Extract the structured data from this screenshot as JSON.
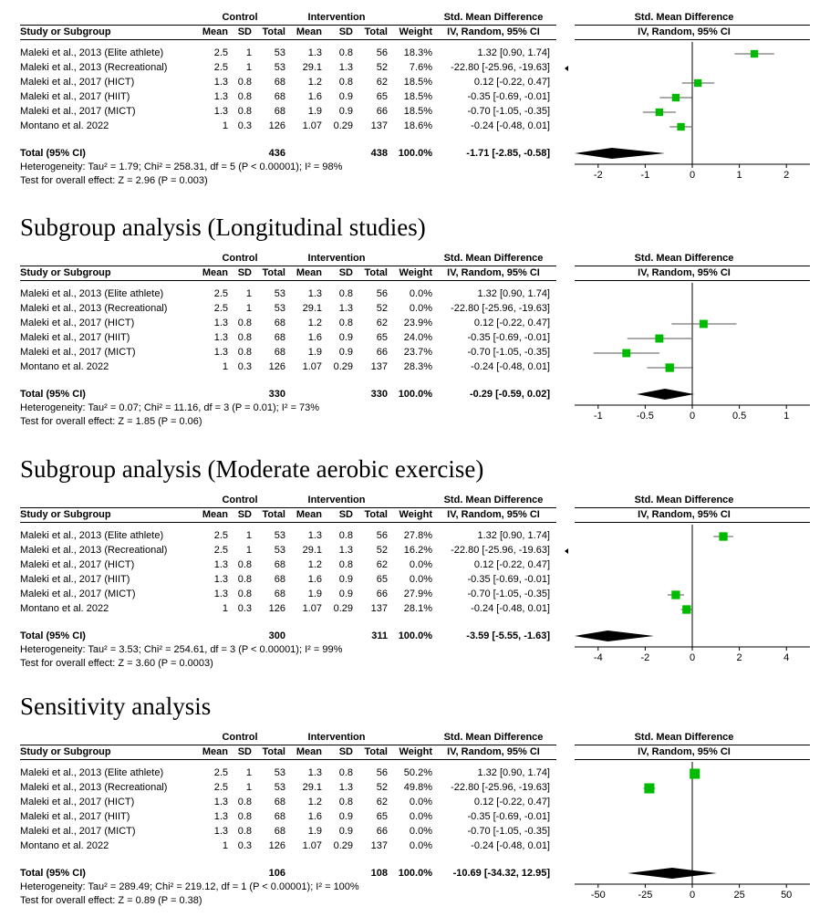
{
  "headers": {
    "control": "Control",
    "intervention": "Intervention",
    "smd": "Std. Mean Difference",
    "smd2": "Std. Mean Difference",
    "study": "Study or Subgroup",
    "mean": "Mean",
    "sd": "SD",
    "total": "Total",
    "weight": "Weight",
    "method": "IV, Random, 95% CI",
    "method2": "IV, Random, 95% CI"
  },
  "panels": [
    {
      "title": "",
      "total_label": "Total (95% CI)",
      "total_control": "436",
      "total_intervention": "438",
      "total_weight": "100.0%",
      "total_ci": "-1.71 [-2.85, -0.58]",
      "heterogeneity": "Heterogeneity: Tau² = 1.79; Chi² = 258.31, df = 5 (P < 0.00001); I² = 98%",
      "overall": "Test for overall effect: Z = 2.96 (P = 0.003)",
      "rows": [
        {
          "study": "Maleki et al., 2013 (Elite athlete)",
          "cm": "2.5",
          "csd": "1",
          "cn": "53",
          "im": "1.3",
          "isd": "0.8",
          "in": "56",
          "w": "18.3%",
          "ci": "1.32 [0.90, 1.74]"
        },
        {
          "study": "Maleki et al., 2013 (Recreational)",
          "cm": "2.5",
          "csd": "1",
          "cn": "53",
          "im": "29.1",
          "isd": "1.3",
          "in": "52",
          "w": "7.6%",
          "ci": "-22.80 [-25.96, -19.63]"
        },
        {
          "study": "Maleki et al., 2017 (HICT)",
          "cm": "1.3",
          "csd": "0.8",
          "cn": "68",
          "im": "1.2",
          "isd": "0.8",
          "in": "62",
          "w": "18.5%",
          "ci": "0.12 [-0.22, 0.47]"
        },
        {
          "study": "Maleki et al., 2017 (HIIT)",
          "cm": "1.3",
          "csd": "0.8",
          "cn": "68",
          "im": "1.6",
          "isd": "0.9",
          "in": "65",
          "w": "18.5%",
          "ci": "-0.35 [-0.69, -0.01]"
        },
        {
          "study": "Maleki et al., 2017 (MICT)",
          "cm": "1.3",
          "csd": "0.8",
          "cn": "68",
          "im": "1.9",
          "isd": "0.9",
          "in": "66",
          "w": "18.5%",
          "ci": "-0.70 [-1.05, -0.35]"
        },
        {
          "study": "Montano et al. 2022",
          "cm": "1",
          "csd": "0.3",
          "cn": "126",
          "im": "1.07",
          "isd": "0.29",
          "in": "137",
          "w": "18.6%",
          "ci": "-0.24 [-0.48, 0.01]"
        }
      ],
      "axis_ticks": [
        "-2",
        "-1",
        "0",
        "1",
        "2"
      ]
    },
    {
      "title": "Subgroup analysis (Longitudinal studies)",
      "total_label": "Total (95% CI)",
      "total_control": "330",
      "total_intervention": "330",
      "total_weight": "100.0%",
      "total_ci": "-0.29 [-0.59, 0.02]",
      "heterogeneity": "Heterogeneity: Tau² = 0.07; Chi² = 11.16, df = 3 (P = 0.01); I² = 73%",
      "overall": "Test for overall effect: Z = 1.85 (P = 0.06)",
      "rows": [
        {
          "study": "Maleki et al., 2013 (Elite athlete)",
          "cm": "2.5",
          "csd": "1",
          "cn": "53",
          "im": "1.3",
          "isd": "0.8",
          "in": "56",
          "w": "0.0%",
          "ci": "1.32 [0.90, 1.74]"
        },
        {
          "study": "Maleki et al., 2013 (Recreational)",
          "cm": "2.5",
          "csd": "1",
          "cn": "53",
          "im": "29.1",
          "isd": "1.3",
          "in": "52",
          "w": "0.0%",
          "ci": "-22.80 [-25.96, -19.63]"
        },
        {
          "study": "Maleki et al., 2017 (HICT)",
          "cm": "1.3",
          "csd": "0.8",
          "cn": "68",
          "im": "1.2",
          "isd": "0.8",
          "in": "62",
          "w": "23.9%",
          "ci": "0.12 [-0.22, 0.47]"
        },
        {
          "study": "Maleki et al., 2017 (HIIT)",
          "cm": "1.3",
          "csd": "0.8",
          "cn": "68",
          "im": "1.6",
          "isd": "0.9",
          "in": "65",
          "w": "24.0%",
          "ci": "-0.35 [-0.69, -0.01]"
        },
        {
          "study": "Maleki et al., 2017 (MICT)",
          "cm": "1.3",
          "csd": "0.8",
          "cn": "68",
          "im": "1.9",
          "isd": "0.9",
          "in": "66",
          "w": "23.7%",
          "ci": "-0.70 [-1.05, -0.35]"
        },
        {
          "study": "Montano et al. 2022",
          "cm": "1",
          "csd": "0.3",
          "cn": "126",
          "im": "1.07",
          "isd": "0.29",
          "in": "137",
          "w": "28.3%",
          "ci": "-0.24 [-0.48, 0.01]"
        }
      ],
      "axis_ticks": [
        "-1",
        "-0.5",
        "0",
        "0.5",
        "1"
      ]
    },
    {
      "title": "Subgroup analysis (Moderate aerobic exercise)",
      "total_label": "Total (95% CI)",
      "total_control": "300",
      "total_intervention": "311",
      "total_weight": "100.0%",
      "total_ci": "-3.59 [-5.55, -1.63]",
      "heterogeneity": "Heterogeneity: Tau² = 3.53; Chi² = 254.61, df = 3 (P < 0.00001); I² = 99%",
      "overall": "Test for overall effect: Z = 3.60 (P = 0.0003)",
      "rows": [
        {
          "study": "Maleki et al., 2013 (Elite athlete)",
          "cm": "2.5",
          "csd": "1",
          "cn": "53",
          "im": "1.3",
          "isd": "0.8",
          "in": "56",
          "w": "27.8%",
          "ci": "1.32 [0.90, 1.74]"
        },
        {
          "study": "Maleki et al., 2013 (Recreational)",
          "cm": "2.5",
          "csd": "1",
          "cn": "53",
          "im": "29.1",
          "isd": "1.3",
          "in": "52",
          "w": "16.2%",
          "ci": "-22.80 [-25.96, -19.63]"
        },
        {
          "study": "Maleki et al., 2017 (HICT)",
          "cm": "1.3",
          "csd": "0.8",
          "cn": "68",
          "im": "1.2",
          "isd": "0.8",
          "in": "62",
          "w": "0.0%",
          "ci": "0.12 [-0.22, 0.47]"
        },
        {
          "study": "Maleki et al., 2017 (HIIT)",
          "cm": "1.3",
          "csd": "0.8",
          "cn": "68",
          "im": "1.6",
          "isd": "0.9",
          "in": "65",
          "w": "0.0%",
          "ci": "-0.35 [-0.69, -0.01]"
        },
        {
          "study": "Maleki et al., 2017 (MICT)",
          "cm": "1.3",
          "csd": "0.8",
          "cn": "68",
          "im": "1.9",
          "isd": "0.9",
          "in": "66",
          "w": "27.9%",
          "ci": "-0.70 [-1.05, -0.35]"
        },
        {
          "study": "Montano et al. 2022",
          "cm": "1",
          "csd": "0.3",
          "cn": "126",
          "im": "1.07",
          "isd": "0.29",
          "in": "137",
          "w": "28.1%",
          "ci": "-0.24 [-0.48, 0.01]"
        }
      ],
      "axis_ticks": [
        "-4",
        "-2",
        "0",
        "2",
        "4"
      ]
    },
    {
      "title": "Sensitivity analysis",
      "total_label": "Total (95% CI)",
      "total_control": "106",
      "total_intervention": "108",
      "total_weight": "100.0%",
      "total_ci": "-10.69 [-34.32, 12.95]",
      "heterogeneity": "Heterogeneity: Tau² = 289.49; Chi² = 219.12, df = 1 (P < 0.00001); I² = 100%",
      "overall": "Test for overall effect: Z = 0.89 (P = 0.38)",
      "rows": [
        {
          "study": "Maleki et al., 2013 (Elite athlete)",
          "cm": "2.5",
          "csd": "1",
          "cn": "53",
          "im": "1.3",
          "isd": "0.8",
          "in": "56",
          "w": "50.2%",
          "ci": "1.32 [0.90, 1.74]"
        },
        {
          "study": "Maleki et al., 2013 (Recreational)",
          "cm": "2.5",
          "csd": "1",
          "cn": "53",
          "im": "29.1",
          "isd": "1.3",
          "in": "52",
          "w": "49.8%",
          "ci": "-22.80 [-25.96, -19.63]"
        },
        {
          "study": "Maleki et al., 2017 (HICT)",
          "cm": "1.3",
          "csd": "0.8",
          "cn": "68",
          "im": "1.2",
          "isd": "0.8",
          "in": "62",
          "w": "0.0%",
          "ci": "0.12 [-0.22, 0.47]"
        },
        {
          "study": "Maleki et al., 2017 (HIIT)",
          "cm": "1.3",
          "csd": "0.8",
          "cn": "68",
          "im": "1.6",
          "isd": "0.9",
          "in": "65",
          "w": "0.0%",
          "ci": "-0.35 [-0.69, -0.01]"
        },
        {
          "study": "Maleki et al., 2017 (MICT)",
          "cm": "1.3",
          "csd": "0.8",
          "cn": "68",
          "im": "1.9",
          "isd": "0.9",
          "in": "66",
          "w": "0.0%",
          "ci": "-0.70 [-1.05, -0.35]"
        },
        {
          "study": "Montano et al. 2022",
          "cm": "1",
          "csd": "0.3",
          "cn": "126",
          "im": "1.07",
          "isd": "0.29",
          "in": "137",
          "w": "0.0%",
          "ci": "-0.24 [-0.48, 0.01]"
        }
      ],
      "axis_ticks": [
        "-50",
        "-25",
        "0",
        "25",
        "50"
      ]
    }
  ],
  "colors": {
    "marker": "#00bb00",
    "line": "#000000",
    "diamond": "#000000"
  },
  "chart_data": [
    {
      "type": "forest",
      "xlim": [
        -2.5,
        2.5
      ],
      "points": [
        {
          "y": 1.32,
          "lo": 0.9,
          "hi": 1.74,
          "weight": 18.3
        },
        {
          "y": -22.8,
          "lo": -25.96,
          "hi": -19.63,
          "weight": 7.6,
          "off_scale": "left"
        },
        {
          "y": 0.12,
          "lo": -0.22,
          "hi": 0.47,
          "weight": 18.5
        },
        {
          "y": -0.35,
          "lo": -0.69,
          "hi": -0.01,
          "weight": 18.5
        },
        {
          "y": -0.7,
          "lo": -1.05,
          "hi": -0.35,
          "weight": 18.5
        },
        {
          "y": -0.24,
          "lo": -0.48,
          "hi": 0.01,
          "weight": 18.6
        }
      ],
      "pooled": {
        "y": -1.71,
        "lo": -2.85,
        "hi": -0.58
      }
    },
    {
      "type": "forest",
      "xlim": [
        -1.25,
        1.25
      ],
      "points": [
        {
          "y": 0.12,
          "lo": -0.22,
          "hi": 0.47,
          "weight": 23.9
        },
        {
          "y": -0.35,
          "lo": -0.69,
          "hi": -0.01,
          "weight": 24.0
        },
        {
          "y": -0.7,
          "lo": -1.05,
          "hi": -0.35,
          "weight": 23.7
        },
        {
          "y": -0.24,
          "lo": -0.48,
          "hi": 0.01,
          "weight": 28.3
        }
      ],
      "pooled": {
        "y": -0.29,
        "lo": -0.59,
        "hi": 0.02
      }
    },
    {
      "type": "forest",
      "xlim": [
        -5,
        5
      ],
      "points": [
        {
          "y": 1.32,
          "lo": 0.9,
          "hi": 1.74,
          "weight": 27.8
        },
        {
          "y": -22.8,
          "lo": -25.96,
          "hi": -19.63,
          "weight": 16.2,
          "off_scale": "left"
        },
        {
          "y": -0.7,
          "lo": -1.05,
          "hi": -0.35,
          "weight": 27.9
        },
        {
          "y": -0.24,
          "lo": -0.48,
          "hi": 0.01,
          "weight": 28.1
        }
      ],
      "pooled": {
        "y": -3.59,
        "lo": -5.55,
        "hi": -1.63
      }
    },
    {
      "type": "forest",
      "xlim": [
        -62.5,
        62.5
      ],
      "points": [
        {
          "y": 1.32,
          "lo": 0.9,
          "hi": 1.74,
          "weight": 50.2
        },
        {
          "y": -22.8,
          "lo": -25.96,
          "hi": -19.63,
          "weight": 49.8
        }
      ],
      "pooled": {
        "y": -10.69,
        "lo": -34.32,
        "hi": 12.95
      }
    }
  ]
}
